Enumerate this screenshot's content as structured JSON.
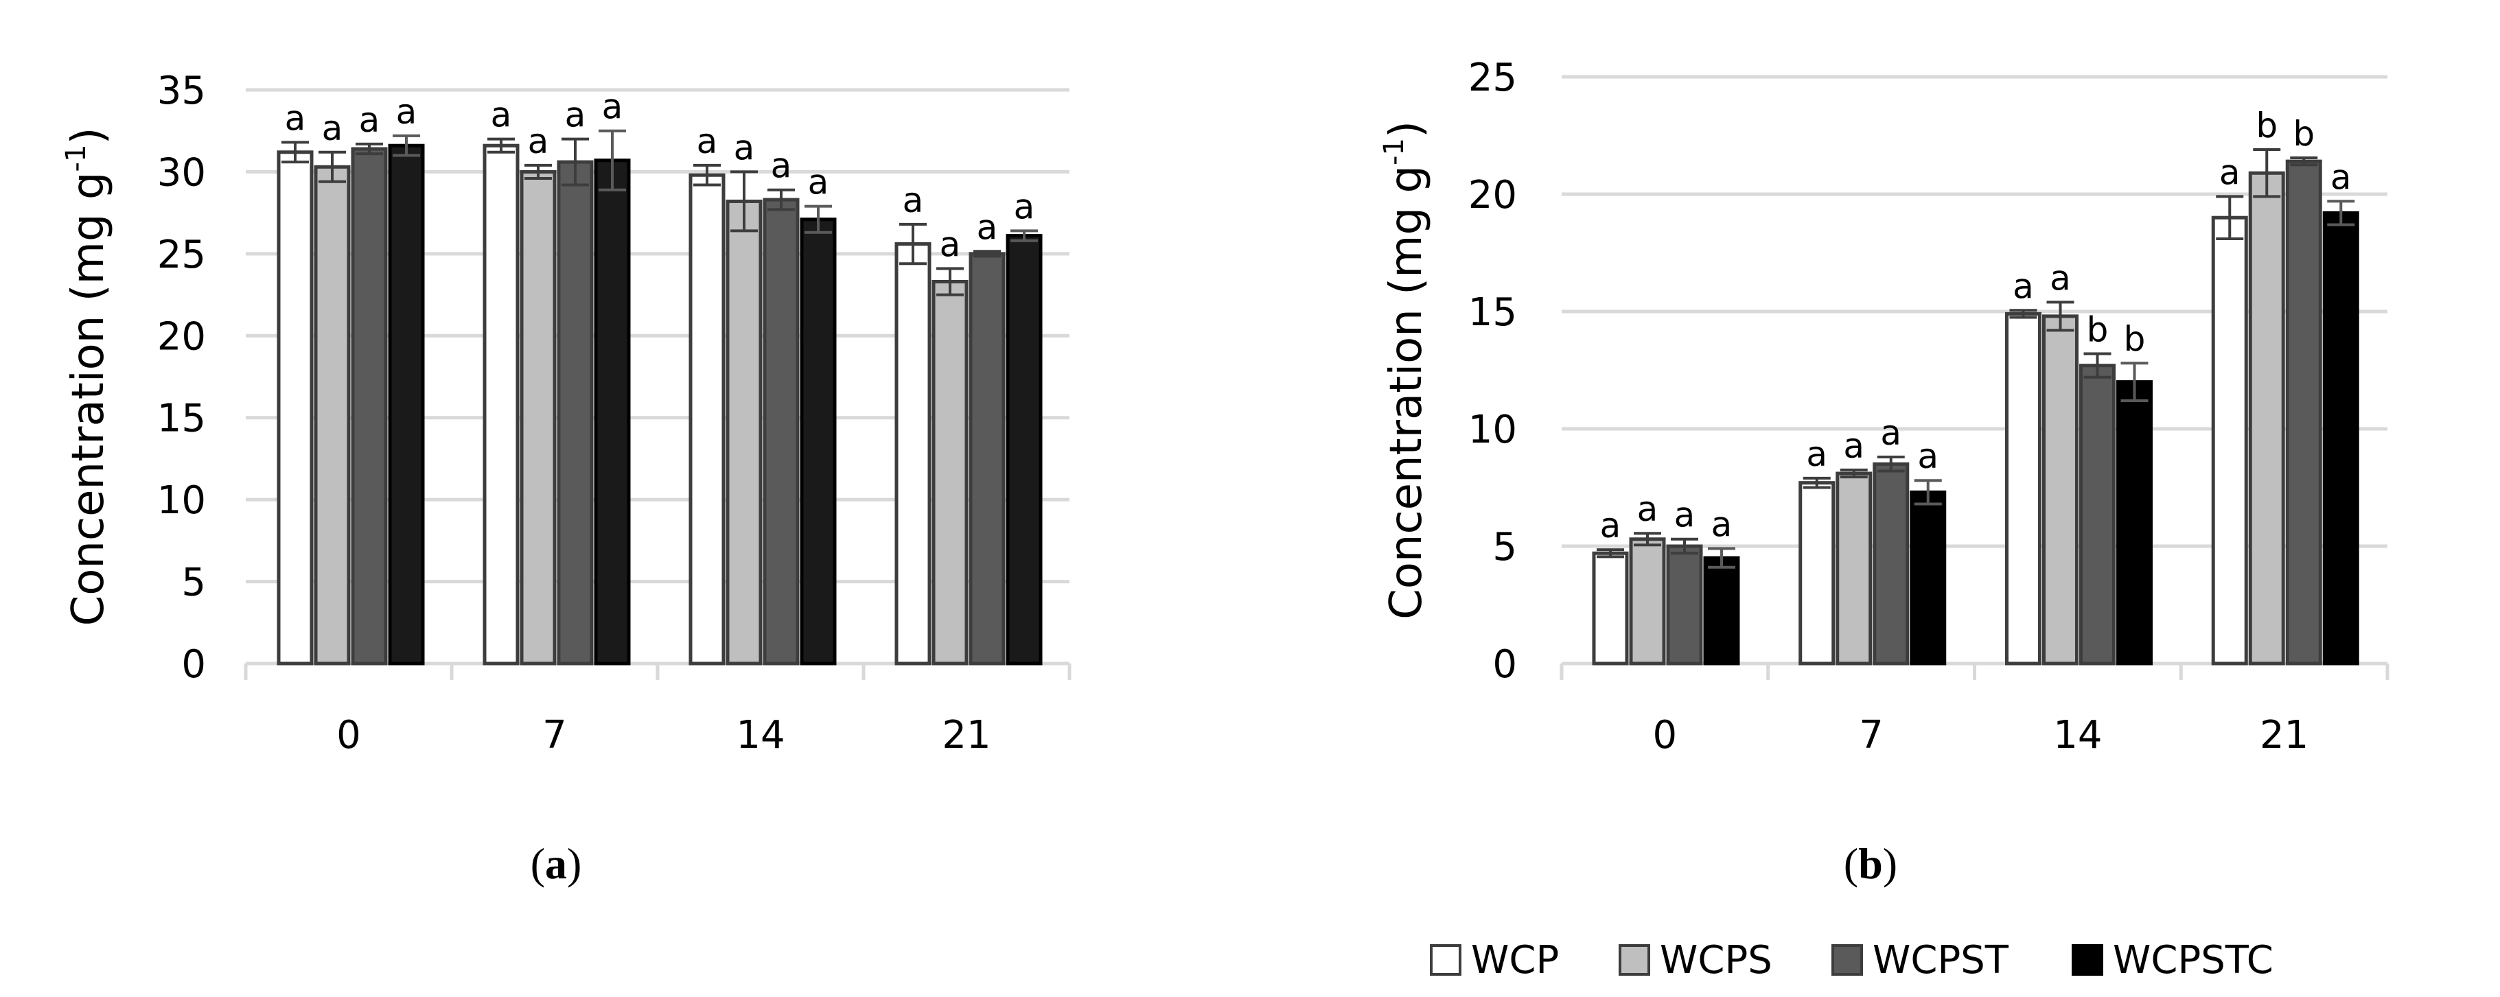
{
  "figure": {
    "legend": [
      {
        "name": "WCP",
        "color": "#ffffff"
      },
      {
        "name": "WCPS",
        "color": "#bfbfbf"
      },
      {
        "name": "WCPST",
        "color": "#5a5a5a"
      },
      {
        "name": "WCPSTC",
        "color": "#000000"
      }
    ]
  },
  "chart_data": [
    {
      "type": "bar",
      "panel": "a",
      "panel_label": {
        "open": "(",
        "letter": "a",
        "close": ")"
      },
      "ylabel": "Concentration (mg g",
      "ylabel_sup": "-1",
      "ylabel_close": ")",
      "xlabel": "",
      "ylim": [
        0,
        35
      ],
      "yticks": [
        0,
        5,
        10,
        15,
        20,
        25,
        30,
        35
      ],
      "grid": true,
      "categories": [
        "0",
        "7",
        "14",
        "21"
      ],
      "series": [
        {
          "name": "WCP",
          "color": "#ffffff",
          "values": [
            31.2,
            31.6,
            29.8,
            25.6
          ],
          "errors": [
            0.6,
            0.4,
            0.6,
            1.2
          ],
          "letters": [
            "a",
            "a",
            "a",
            "a"
          ]
        },
        {
          "name": "WCPS",
          "color": "#bfbfbf",
          "values": [
            30.3,
            30.0,
            28.2,
            23.3
          ],
          "errors": [
            0.9,
            0.4,
            1.8,
            0.8
          ],
          "letters": [
            "a",
            "a",
            "a",
            "a"
          ]
        },
        {
          "name": "WCPST",
          "color": "#5a5a5a",
          "values": [
            31.4,
            30.6,
            28.3,
            25.0
          ],
          "errors": [
            0.3,
            1.4,
            0.6,
            0.15
          ],
          "letters": [
            "a",
            "a",
            "a",
            "a"
          ]
        },
        {
          "name": "WCPSTC",
          "color": "#1a1a1a",
          "values": [
            31.6,
            30.7,
            27.1,
            26.1
          ],
          "errors": [
            0.6,
            1.8,
            0.8,
            0.3
          ],
          "letters": [
            "a",
            "a",
            "a",
            "a"
          ]
        }
      ]
    },
    {
      "type": "bar",
      "panel": "b",
      "panel_label": {
        "open": "(",
        "letter": "b",
        "close": ")"
      },
      "ylabel": "Concentration (mg g",
      "ylabel_sup": "-1",
      "ylabel_close": ")",
      "xlabel": "",
      "ylim": [
        0,
        25
      ],
      "yticks": [
        0,
        5,
        10,
        15,
        20,
        25
      ],
      "grid": true,
      "categories": [
        "0",
        "7",
        "14",
        "21"
      ],
      "series": [
        {
          "name": "WCP",
          "color": "#ffffff",
          "values": [
            4.7,
            7.7,
            14.9,
            19.0
          ],
          "errors": [
            0.15,
            0.2,
            0.15,
            0.9
          ],
          "letters": [
            "a",
            "a",
            "a",
            "a"
          ]
        },
        {
          "name": "WCPS",
          "color": "#bfbfbf",
          "values": [
            5.3,
            8.1,
            14.8,
            20.9
          ],
          "errors": [
            0.25,
            0.15,
            0.6,
            1.0
          ],
          "letters": [
            "a",
            "a",
            "a",
            "b"
          ]
        },
        {
          "name": "WCPST",
          "color": "#5a5a5a",
          "values": [
            5.0,
            8.5,
            12.7,
            21.4
          ],
          "errors": [
            0.3,
            0.3,
            0.5,
            0.15
          ],
          "letters": [
            "a",
            "a",
            "b",
            "b"
          ]
        },
        {
          "name": "WCPSTC",
          "color": "#000000",
          "values": [
            4.5,
            7.3,
            12.0,
            19.2
          ],
          "errors": [
            0.4,
            0.5,
            0.8,
            0.5
          ],
          "letters": [
            "a",
            "a",
            "b",
            "a"
          ]
        }
      ]
    }
  ]
}
